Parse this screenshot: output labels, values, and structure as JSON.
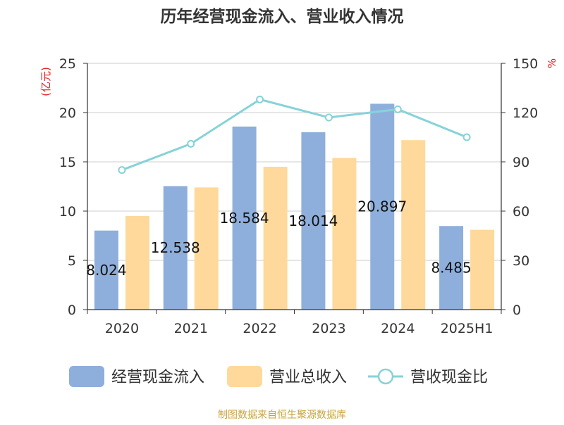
{
  "title": "历年经营现金流入、营业收入情况",
  "left_unit": "(亿元)",
  "right_unit": "%",
  "source": "制图数据来自恒生聚源数据库",
  "colors": {
    "cash_inflow": "#8eafdb",
    "revenue": "#ffd99b",
    "ratio": "#86d3d8",
    "unit_text": "#e02020",
    "source_text": "#c9a43a",
    "title_text": "#333333",
    "axis_text": "#333333",
    "grid": "#cccccc"
  },
  "chart_data": {
    "type": "bar",
    "categories": [
      "2020",
      "2021",
      "2022",
      "2023",
      "2024",
      "2025H1"
    ],
    "series": [
      {
        "name": "经营现金流入",
        "type": "bar",
        "axis": "left",
        "values": [
          8.024,
          12.538,
          18.584,
          18.014,
          20.897,
          8.485
        ],
        "labels": [
          "8.024",
          "12.538",
          "18.584",
          "18.014",
          "20.897",
          "8.485"
        ]
      },
      {
        "name": "营业总收入",
        "type": "bar",
        "axis": "left",
        "values": [
          9.5,
          12.4,
          14.5,
          15.4,
          17.2,
          8.1
        ]
      },
      {
        "name": "营收现金比",
        "type": "line",
        "axis": "right",
        "values": [
          85,
          101,
          128,
          117,
          122,
          105
        ]
      }
    ],
    "left_axis": {
      "ylim": [
        0,
        25
      ],
      "ticks": [
        "0",
        "5",
        "10",
        "15",
        "20",
        "25"
      ]
    },
    "right_axis": {
      "ylim": [
        0,
        150
      ],
      "ticks": [
        "0",
        "30",
        "60",
        "90",
        "120",
        "150"
      ]
    },
    "grid": true,
    "legend_position": "bottom"
  }
}
